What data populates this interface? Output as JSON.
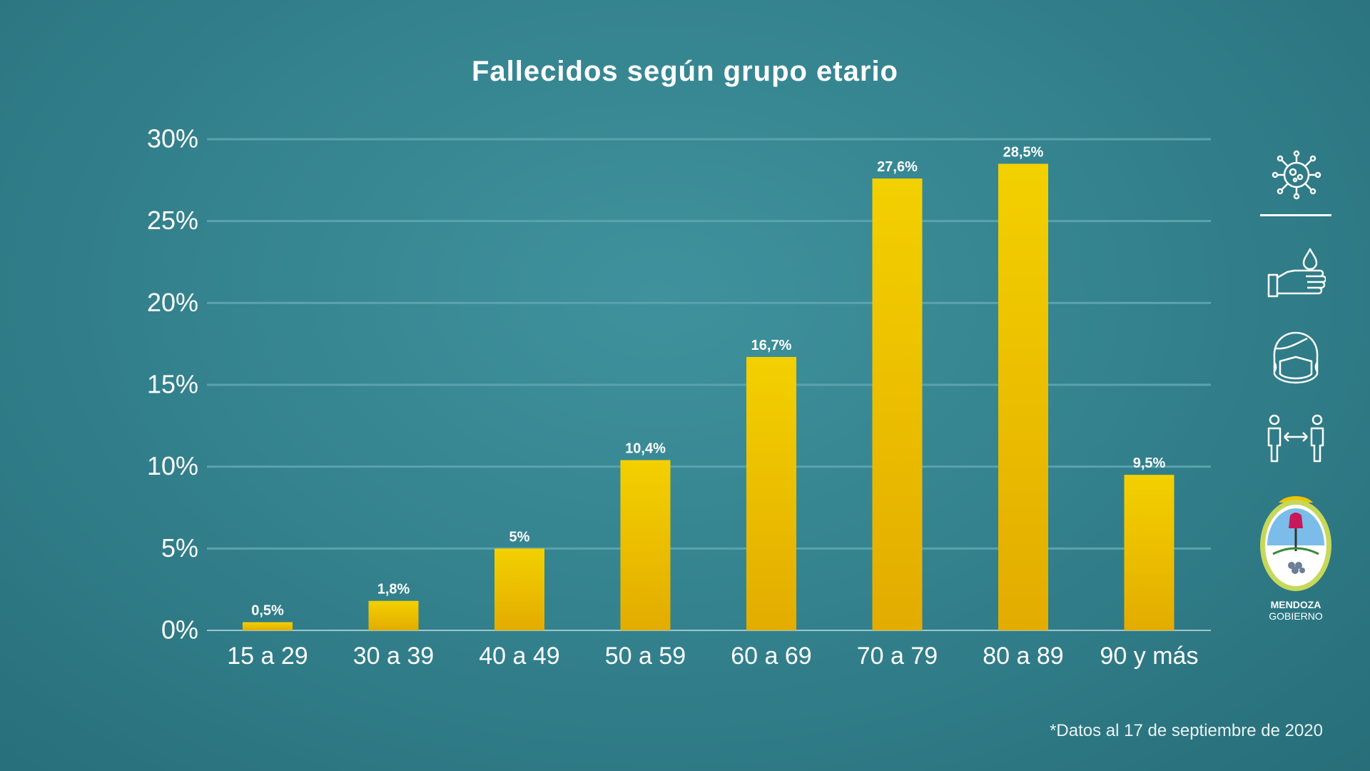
{
  "chart_data": {
    "type": "bar",
    "title": "Fallecidos según grupo etario",
    "categories": [
      "15 a 29",
      "30 a 39",
      "40 a 49",
      "50 a 59",
      "60 a 69",
      "70 a 79",
      "80 a 89",
      "90 y más"
    ],
    "values": [
      0.5,
      1.8,
      5,
      10.4,
      16.7,
      27.6,
      28.5,
      9.5
    ],
    "value_labels": [
      "0,5%",
      "1,8%",
      "5%",
      "10,4%",
      "16,7%",
      "27,6%",
      "28,5%",
      "9,5%"
    ],
    "y_ticks": [
      0,
      5,
      10,
      15,
      20,
      25,
      30
    ],
    "y_tick_labels": [
      "0%",
      "5%",
      "10%",
      "15%",
      "20%",
      "25%",
      "30%"
    ],
    "ylim": [
      0,
      30
    ],
    "grid": true,
    "bar_color_top": "#f3d000",
    "bar_color_bottom": "#e3ac00"
  },
  "footnote": "*Datos al 17 de septiembre de 2020",
  "side_icons": [
    "virus-icon",
    "hand-washing-icon",
    "face-mask-icon",
    "social-distance-icon"
  ],
  "logo": {
    "line1": "MENDOZA",
    "line2": "GOBIERNO"
  }
}
